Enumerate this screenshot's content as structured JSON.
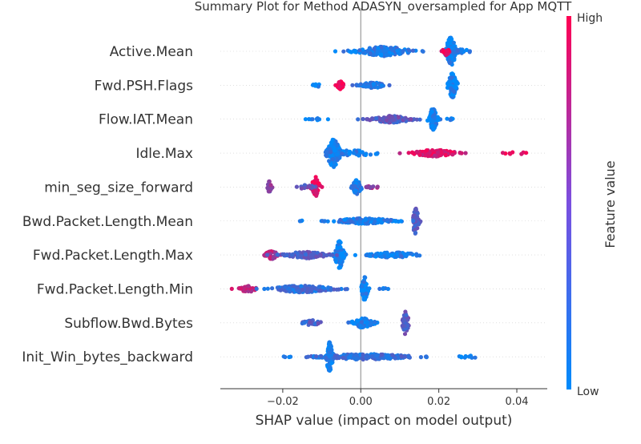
{
  "chart_data": {
    "type": "scatter",
    "title": "Summary Plot for Method ADASYN_oversampled for App MQTT",
    "xlabel": "SHAP value (impact on model output)",
    "xlim": [
      -0.036,
      0.0478
    ],
    "xticks": [
      -0.02,
      0.0,
      0.02,
      0.04
    ],
    "xtick_labels": [
      "−0.02",
      "0.00",
      "0.02",
      "0.04"
    ],
    "zero_line": 0.0,
    "colorbar": {
      "label": "Feature value",
      "high_label": "High",
      "low_label": "Low",
      "low_color": "#008bfb",
      "high_color": "#ff0052"
    },
    "features": [
      {
        "name": "Active.Mean",
        "clusters": [
          {
            "center": 0.0231,
            "spread": 0.0012,
            "count": 110,
            "height": 0.42,
            "value": 0.05
          },
          {
            "center": 0.0218,
            "spread": 0.0008,
            "count": 20,
            "height": 0.12,
            "value": 0.92
          },
          {
            "center": 0.006,
            "spread": 0.006,
            "count": 150,
            "height": 0.14,
            "value": 0.12
          },
          {
            "center": 0.026,
            "spread": 0.002,
            "count": 15,
            "height": 0.06,
            "value": 0.1
          },
          {
            "center": -0.0025,
            "spread": 0.002,
            "count": 6,
            "height": 0.03,
            "value": 0.05
          }
        ]
      },
      {
        "name": "Fwd.PSH.Flags",
        "clusters": [
          {
            "center": 0.0235,
            "spread": 0.001,
            "count": 100,
            "height": 0.36,
            "value": 0.05
          },
          {
            "center": -0.0052,
            "spread": 0.0008,
            "count": 40,
            "height": 0.12,
            "value": 0.98
          },
          {
            "center": 0.003,
            "spread": 0.003,
            "count": 60,
            "height": 0.08,
            "value": 0.15
          },
          {
            "center": -0.011,
            "spread": 0.0015,
            "count": 8,
            "height": 0.04,
            "value": 0.05
          }
        ]
      },
      {
        "name": "Flow.IAT.Mean",
        "clusters": [
          {
            "center": 0.0185,
            "spread": 0.001,
            "count": 80,
            "height": 0.32,
            "value": 0.05
          },
          {
            "center": 0.008,
            "spread": 0.005,
            "count": 120,
            "height": 0.1,
            "value": 0.35
          },
          {
            "center": -0.011,
            "spread": 0.002,
            "count": 10,
            "height": 0.03,
            "value": 0.05
          },
          {
            "center": 0.023,
            "spread": 0.001,
            "count": 6,
            "height": 0.03,
            "value": 0.05
          }
        ]
      },
      {
        "name": "Idle.Max",
        "clusters": [
          {
            "center": -0.007,
            "spread": 0.0015,
            "count": 150,
            "height": 0.42,
            "value": 0.05
          },
          {
            "center": 0.019,
            "spread": 0.005,
            "count": 110,
            "height": 0.1,
            "value": 0.85
          },
          {
            "center": -0.002,
            "spread": 0.006,
            "count": 40,
            "height": 0.08,
            "value": 0.1
          },
          {
            "center": 0.04,
            "spread": 0.0035,
            "count": 8,
            "height": 0.03,
            "value": 0.95
          }
        ]
      },
      {
        "name": "min_seg_size_forward",
        "clusters": [
          {
            "center": -0.0115,
            "spread": 0.001,
            "count": 60,
            "height": 0.3,
            "value": 0.9
          },
          {
            "center": -0.001,
            "spread": 0.001,
            "count": 60,
            "height": 0.22,
            "value": 0.12
          },
          {
            "center": -0.0235,
            "spread": 0.0005,
            "count": 20,
            "height": 0.18,
            "value": 0.55
          },
          {
            "center": -0.014,
            "spread": 0.002,
            "count": 20,
            "height": 0.06,
            "value": 0.35
          },
          {
            "center": 0.003,
            "spread": 0.0015,
            "count": 10,
            "height": 0.04,
            "value": 0.6
          }
        ]
      },
      {
        "name": "Bwd.Packet.Length.Mean",
        "clusters": [
          {
            "center": 0.014,
            "spread": 0.0008,
            "count": 50,
            "height": 0.38,
            "value": 0.35
          },
          {
            "center": 0.001,
            "spread": 0.007,
            "count": 150,
            "height": 0.08,
            "value": 0.1
          },
          {
            "center": -0.015,
            "spread": 0.001,
            "count": 3,
            "height": 0.02,
            "value": 0.05
          }
        ]
      },
      {
        "name": "Fwd.Packet.Length.Max",
        "clusters": [
          {
            "center": -0.0055,
            "spread": 0.001,
            "count": 110,
            "height": 0.42,
            "value": 0.05
          },
          {
            "center": -0.023,
            "spread": 0.0015,
            "count": 30,
            "height": 0.14,
            "value": 0.7
          },
          {
            "center": -0.014,
            "spread": 0.005,
            "count": 100,
            "height": 0.1,
            "value": 0.35
          },
          {
            "center": 0.008,
            "spread": 0.006,
            "count": 90,
            "height": 0.08,
            "value": 0.1
          }
        ]
      },
      {
        "name": "Fwd.Packet.Length.Min",
        "clusters": [
          {
            "center": 0.001,
            "spread": 0.0007,
            "count": 60,
            "height": 0.36,
            "value": 0.05
          },
          {
            "center": -0.029,
            "spread": 0.002,
            "count": 40,
            "height": 0.1,
            "value": 0.75
          },
          {
            "center": -0.015,
            "spread": 0.007,
            "count": 150,
            "height": 0.1,
            "value": 0.2
          },
          {
            "center": 0.006,
            "spread": 0.0008,
            "count": 5,
            "height": 0.03,
            "value": 0.05
          }
        ]
      },
      {
        "name": "Subflow.Bwd.Bytes",
        "clusters": [
          {
            "center": 0.0115,
            "spread": 0.0007,
            "count": 50,
            "height": 0.36,
            "value": 0.35
          },
          {
            "center": 0.0005,
            "spread": 0.0025,
            "count": 70,
            "height": 0.14,
            "value": 0.1
          },
          {
            "center": -0.0125,
            "spread": 0.002,
            "count": 30,
            "height": 0.08,
            "value": 0.3
          }
        ]
      },
      {
        "name": "Init_Win_bytes_backward",
        "clusters": [
          {
            "center": -0.008,
            "spread": 0.0008,
            "count": 100,
            "height": 0.44,
            "value": 0.05
          },
          {
            "center": 0.001,
            "spread": 0.011,
            "count": 200,
            "height": 0.08,
            "value": 0.2
          },
          {
            "center": 0.028,
            "spread": 0.003,
            "count": 10,
            "height": 0.03,
            "value": 0.05
          },
          {
            "center": -0.019,
            "spread": 0.001,
            "count": 4,
            "height": 0.02,
            "value": 0.05
          }
        ]
      }
    ]
  }
}
